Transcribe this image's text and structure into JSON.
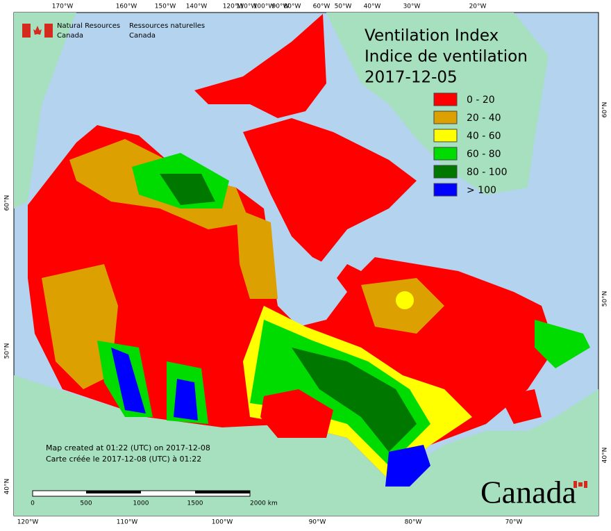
{
  "title_en": "Ventilation Index",
  "title_fr": "Indice de ventilation",
  "date": "2017-12-05",
  "agency": {
    "en_line1": "Natural Resources",
    "en_line2": "Canada",
    "fr_line1": "Ressources naturelles",
    "fr_line2": "Canada"
  },
  "legend": [
    {
      "label": "0 - 20",
      "color": "#ff0000"
    },
    {
      "label": "20 - 40",
      "color": "#dca000"
    },
    {
      "label": "40 - 60",
      "color": "#ffff00"
    },
    {
      "label": "60 - 80",
      "color": "#00dc00"
    },
    {
      "label": "80 - 100",
      "color": "#007800"
    },
    {
      "label": "> 100",
      "color": "#0000ff"
    }
  ],
  "credits": [
    "Map created at 01:22 (UTC) on 2017-12-08",
    "Carte créée le 2017-12-08 (UTC) à 01:22"
  ],
  "scale_bar": [
    "0",
    "500",
    "1000",
    "1500",
    "2000 km"
  ],
  "graticule": {
    "top": [
      "170°W",
      "160°W",
      "150°W",
      "140°W",
      "120°W",
      "110°W",
      "100°W",
      "90°W",
      "80°W",
      "60°W",
      "50°W",
      "40°W",
      "30°W",
      "20°W"
    ],
    "bottom": [
      "120°W",
      "110°W",
      "100°W",
      "90°W",
      "80°W",
      "70°W"
    ],
    "left": [
      "60°N",
      "50°N",
      "40°N"
    ],
    "right": [
      "60°N",
      "50°N",
      "40°N"
    ]
  },
  "wordmark": "Canada"
}
